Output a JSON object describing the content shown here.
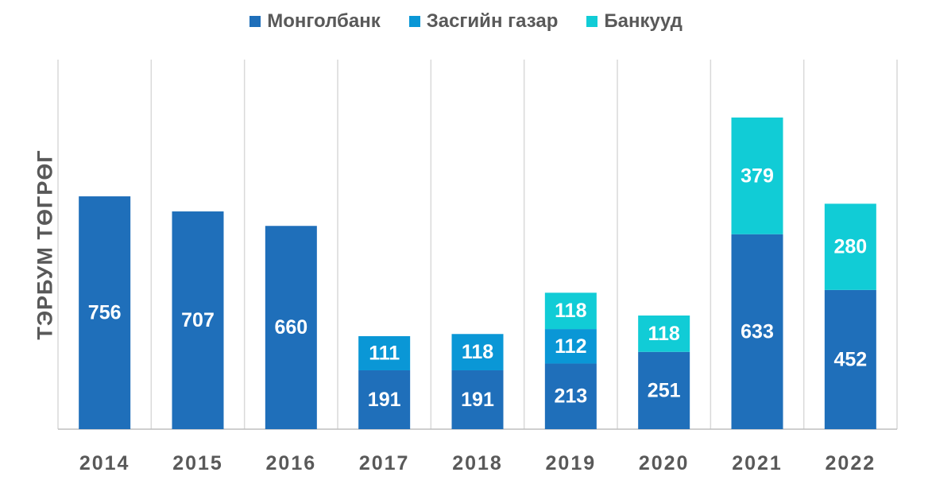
{
  "chart_data": {
    "type": "bar",
    "stacked": true,
    "categories": [
      "2014",
      "2015",
      "2016",
      "2017",
      "2018",
      "2019",
      "2020",
      "2021",
      "2022"
    ],
    "series": [
      {
        "name": "Монголбанк",
        "color": "#1F6FBA",
        "values": [
          756,
          707,
          660,
          191,
          191,
          213,
          251,
          633,
          452
        ]
      },
      {
        "name": "Засгийн газар",
        "color": "#0A97D6",
        "values": [
          null,
          null,
          null,
          111,
          118,
          112,
          null,
          null,
          null
        ]
      },
      {
        "name": "Банкууд",
        "color": "#11CCD6",
        "values": [
          null,
          null,
          null,
          null,
          null,
          118,
          118,
          379,
          280
        ]
      }
    ],
    "title": "",
    "xlabel": "",
    "ylabel": "ТЭРБУМ ТӨГРӨГ",
    "ylim": [
      0,
      1200
    ],
    "legend_position": "top-center",
    "grid": "vertical-separators"
  }
}
